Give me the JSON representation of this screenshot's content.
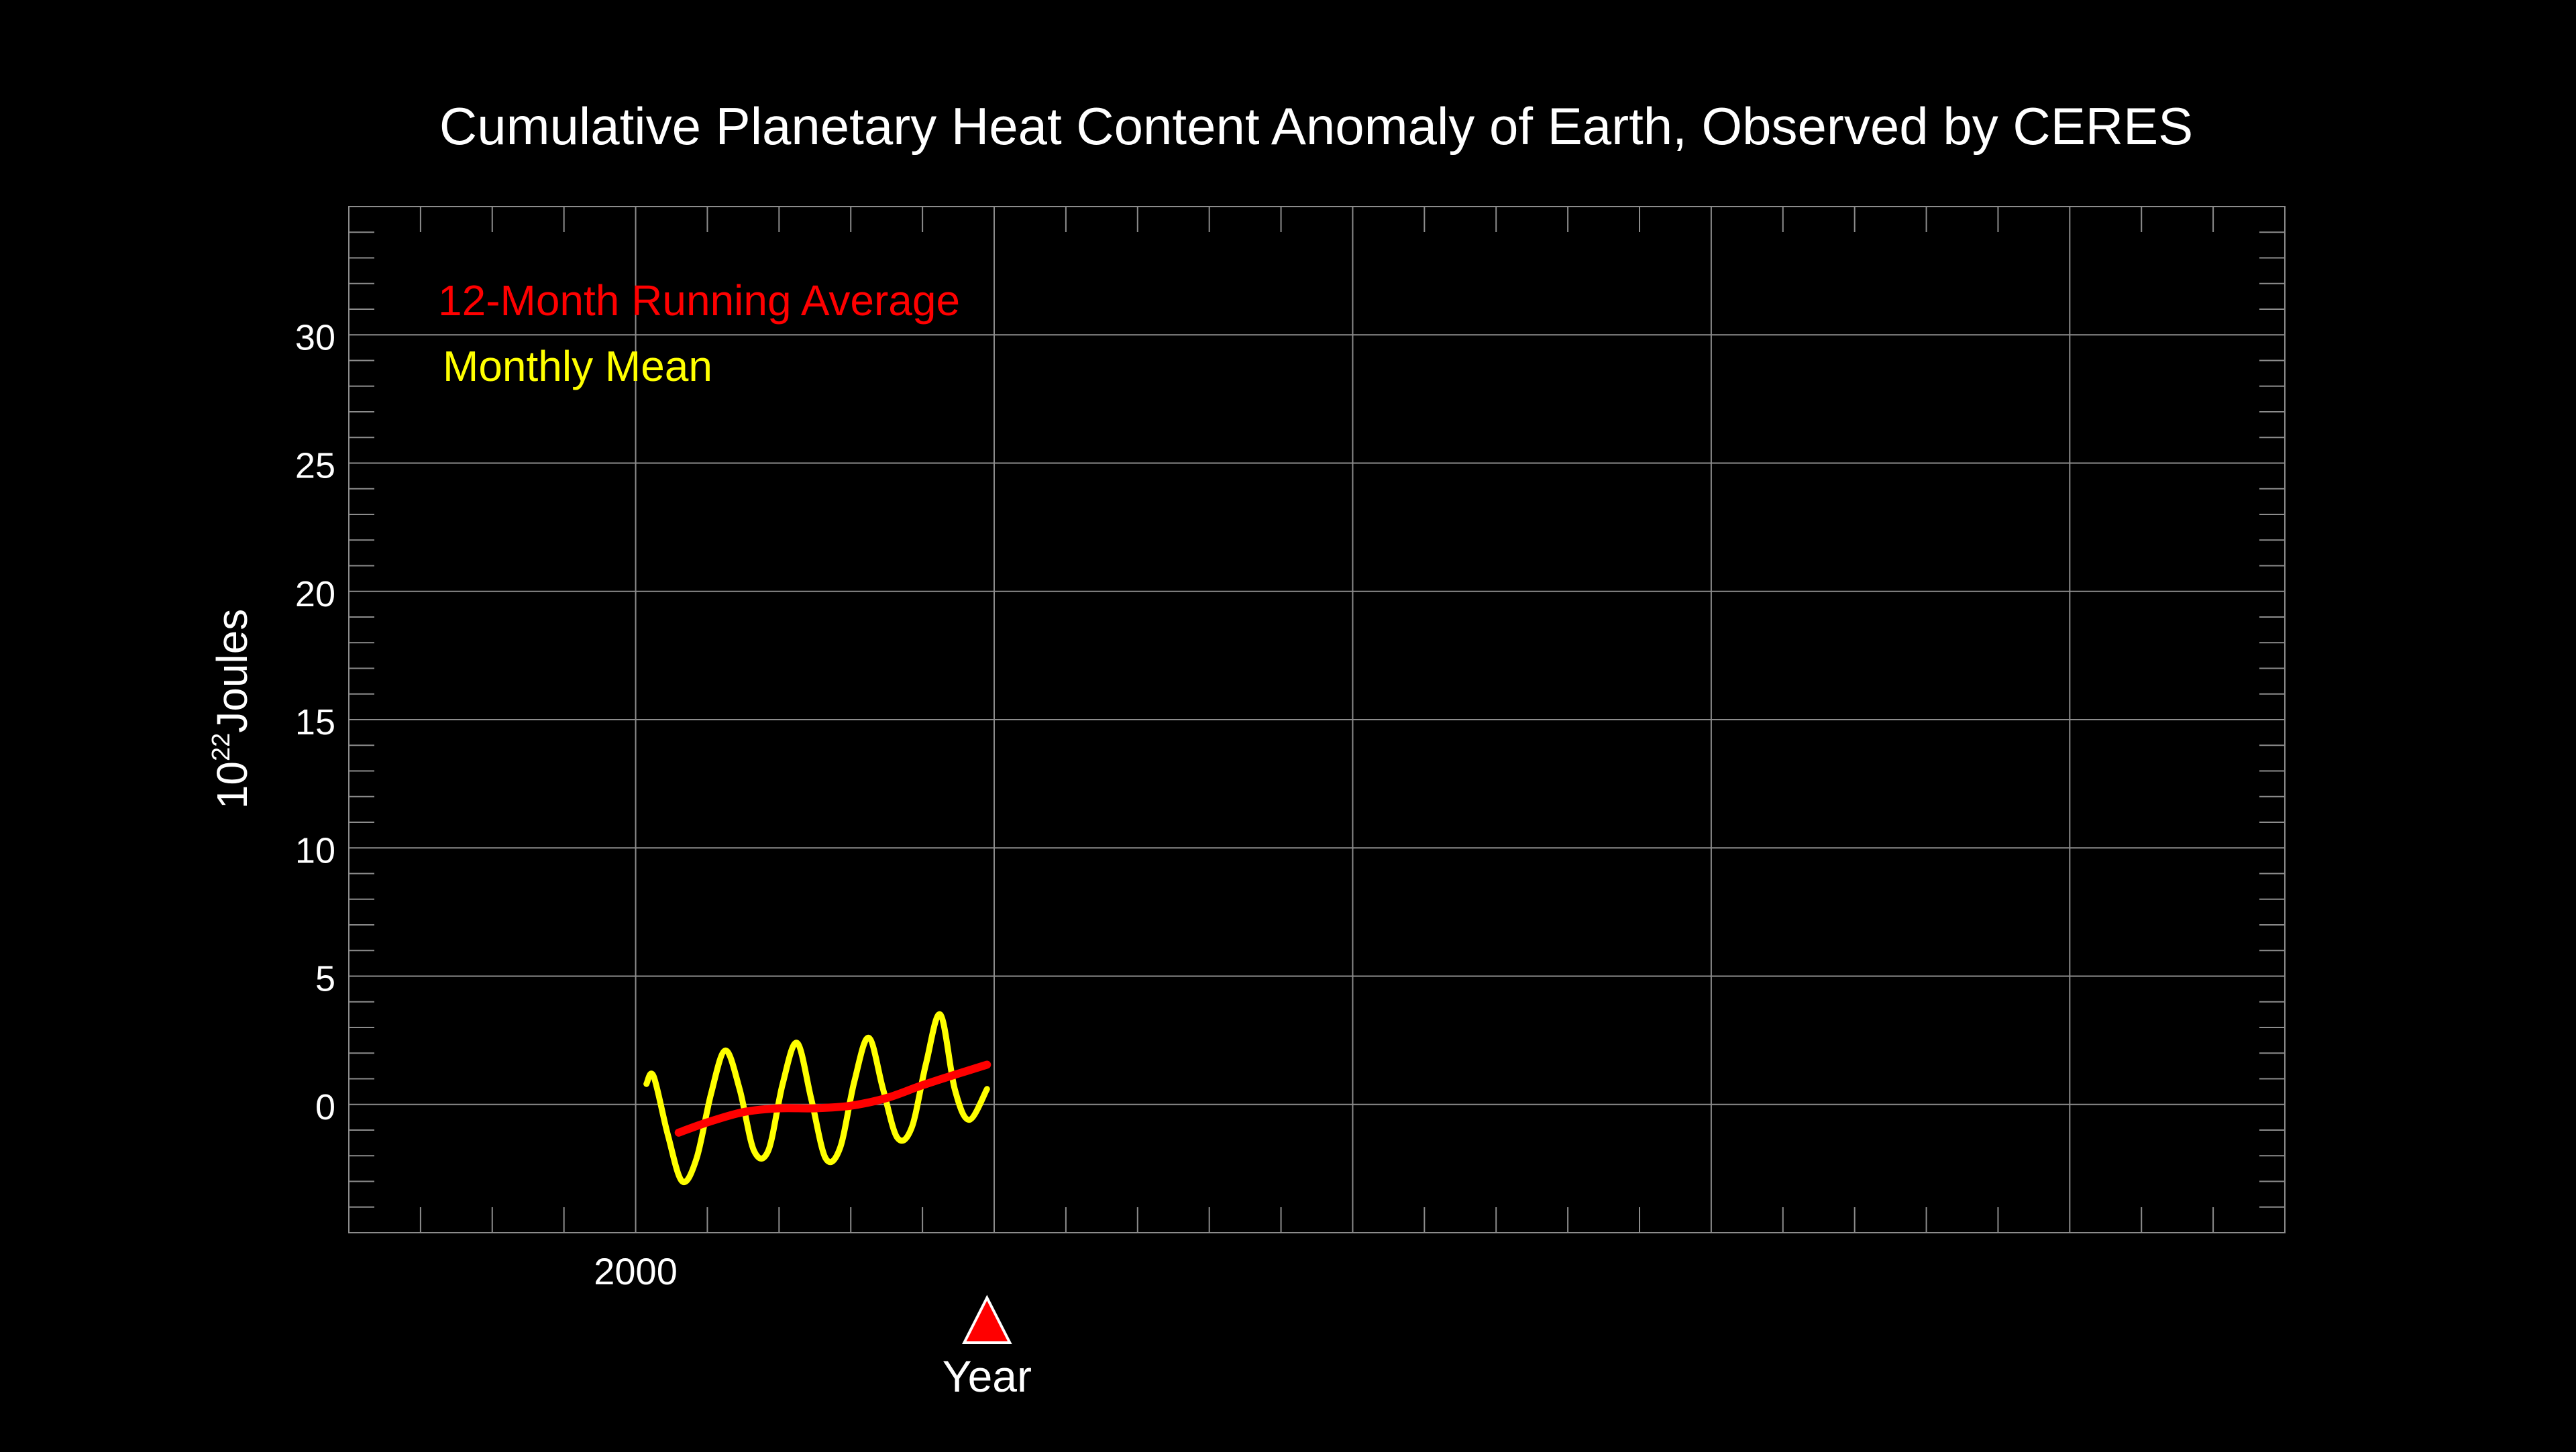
{
  "chart_data": {
    "type": "line",
    "title": "Cumulative Planetary Heat Content Anomaly of Earth, Observed by CERES",
    "ylabel_base": "10",
    "ylabel_exp": "22",
    "ylabel_unit": "Joules",
    "xlabel": "Year",
    "xlim": [
      1996,
      2023
    ],
    "ylim": [
      -5,
      35
    ],
    "yticks": [
      0,
      5,
      10,
      15,
      20,
      25,
      30
    ],
    "xtick_labels": [
      {
        "x": 2000,
        "label": "2000"
      }
    ],
    "x_gridlines": [
      2000,
      2005,
      2010,
      2015,
      2020
    ],
    "x_minor_ticks": [
      1996,
      1997,
      1998,
      1999,
      2000,
      2001,
      2002,
      2003,
      2004,
      2005,
      2006,
      2007,
      2008,
      2009,
      2010,
      2011,
      2012,
      2013,
      2014,
      2015,
      2016,
      2017,
      2018,
      2019,
      2020,
      2021,
      2022,
      2023
    ],
    "y_minor_step": 1,
    "grid": true,
    "legend_placement": "top-left",
    "current_year_marker": 2004.9,
    "colors": {
      "background": "#000000",
      "text": "#ffffff",
      "grid": "#8c8c8c",
      "monthly_mean": "#ffff00",
      "running_average": "#ff0000",
      "marker": "#ff0000"
    },
    "series": [
      {
        "name": "12-Month Running Average",
        "color": "#ff0000",
        "x": [
          2000.6,
          2001.0,
          2001.5,
          2002.0,
          2002.5,
          2003.0,
          2003.5,
          2004.0,
          2004.5,
          2004.9
        ],
        "y": [
          -1.1,
          -0.7,
          -0.3,
          -0.15,
          -0.15,
          -0.05,
          0.25,
          0.75,
          1.2,
          1.55
        ]
      },
      {
        "name": "Monthly Mean",
        "color": "#ffff00",
        "x": [
          2000.15,
          2000.25,
          2000.45,
          2000.65,
          2000.85,
          2001.05,
          2001.25,
          2001.45,
          2001.65,
          2001.85,
          2002.05,
          2002.25,
          2002.45,
          2002.65,
          2002.85,
          2003.05,
          2003.25,
          2003.45,
          2003.65,
          2003.85,
          2004.05,
          2004.25,
          2004.45,
          2004.65,
          2004.9
        ],
        "y": [
          0.8,
          1.1,
          -1.2,
          -3.0,
          -2.1,
          0.4,
          2.1,
          0.6,
          -1.8,
          -1.8,
          0.8,
          2.4,
          0.2,
          -2.1,
          -1.7,
          0.9,
          2.6,
          0.6,
          -1.3,
          -0.9,
          1.6,
          3.5,
          0.6,
          -0.6,
          0.6
        ]
      }
    ]
  }
}
